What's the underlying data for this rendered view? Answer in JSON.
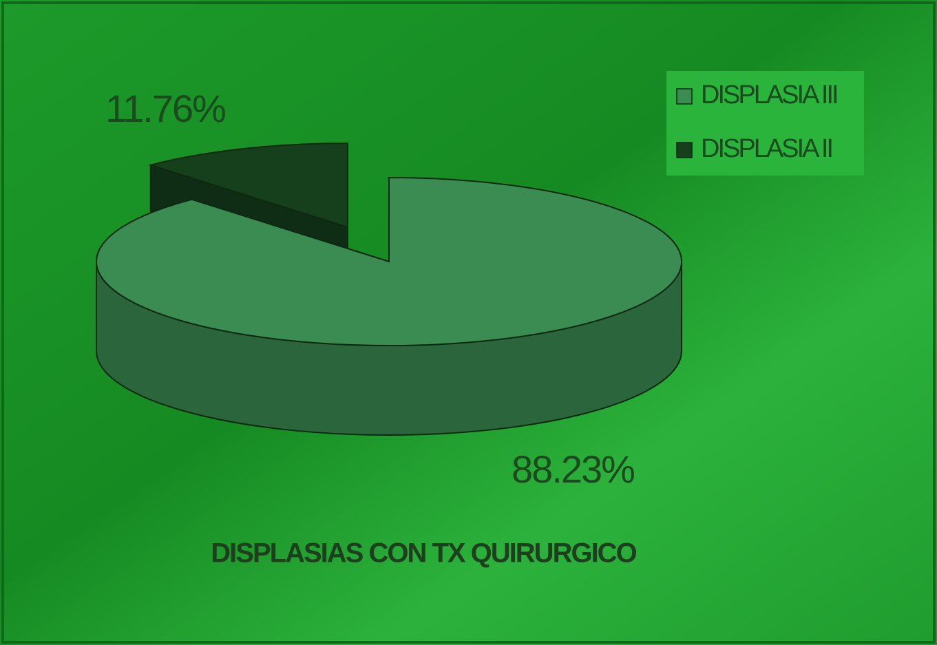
{
  "chart_data": {
    "type": "pie",
    "title": "DISPLASIAS CON TX QUIRURGICO",
    "series": [
      {
        "name": "DISPLASIA III",
        "color": "#3a8c52",
        "values": [
          88.23
        ],
        "value_labels": [
          "88.23%"
        ]
      },
      {
        "name": "DISPLASIA II",
        "color": "#163f1c",
        "values": [
          11.76
        ],
        "value_labels": [
          "11.76%"
        ]
      }
    ],
    "legend": "top-right"
  }
}
